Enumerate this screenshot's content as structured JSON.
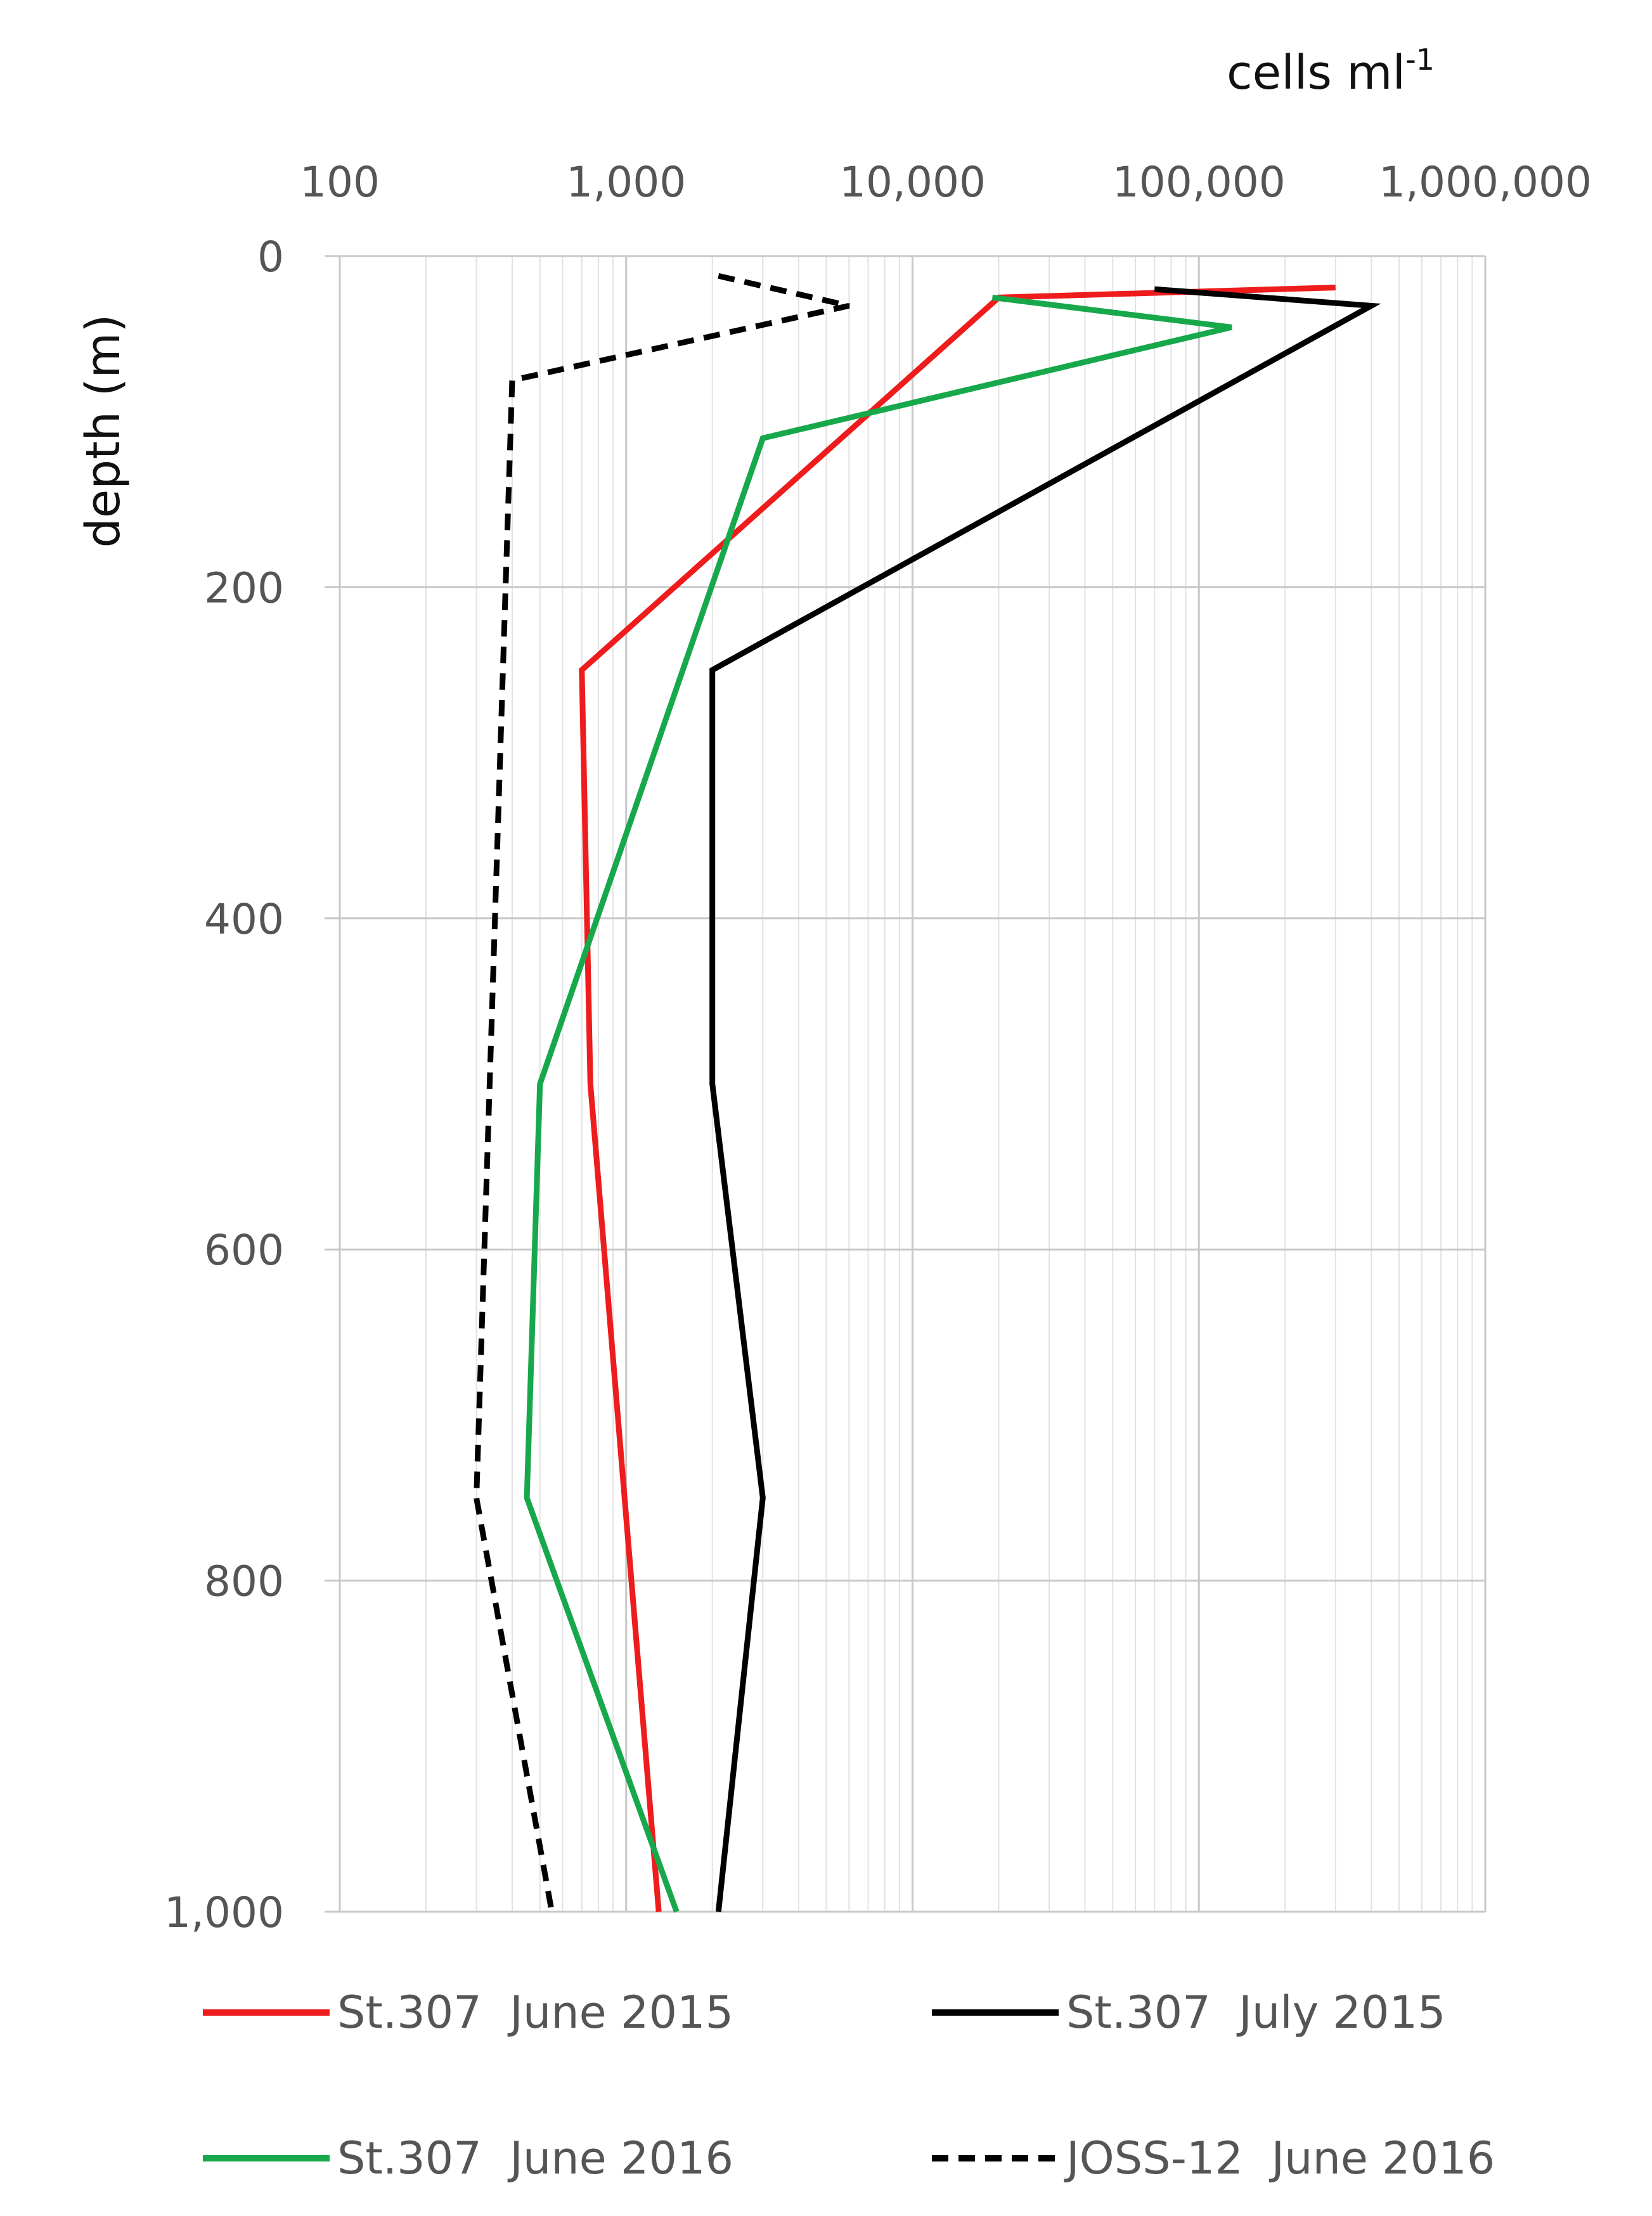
{
  "chart_data": {
    "type": "line",
    "title": "",
    "xlabel": "cells ml",
    "xlabel_superscript": "-1",
    "ylabel": "depth (m)",
    "x_scale": "log",
    "x_axis_position": "top",
    "y_inverted": true,
    "xlim": [
      100,
      1000000
    ],
    "ylim": [
      0,
      1000
    ],
    "x_ticks": [
      100,
      1000,
      10000,
      100000,
      1000000
    ],
    "x_tick_labels": [
      "100",
      "1,000",
      "10,000",
      "100,000",
      "1,000,000"
    ],
    "y_ticks": [
      0,
      200,
      400,
      600,
      800,
      1000
    ],
    "y_tick_labels": [
      "0",
      "200",
      "400",
      "600",
      "800",
      "1,000"
    ],
    "grid": true,
    "legend_position": "bottom",
    "series": [
      {
        "name": "St.307  June 2015",
        "color": "#ee1c1c",
        "dash": "solid",
        "points": [
          [
            300000,
            19
          ],
          [
            20000,
            25
          ],
          [
            700,
            250
          ],
          [
            750,
            500
          ],
          [
            1300,
            1000
          ]
        ]
      },
      {
        "name": "St.307  July 2015",
        "color": "#000000",
        "dash": "solid",
        "points": [
          [
            70000,
            20
          ],
          [
            400000,
            30
          ],
          [
            2000,
            250
          ],
          [
            2000,
            500
          ],
          [
            3000,
            750
          ],
          [
            2100,
            1000
          ]
        ]
      },
      {
        "name": "St.307  June 2016",
        "color": "#17a84b",
        "dash": "solid",
        "points": [
          [
            19000,
            25
          ],
          [
            130000,
            43
          ],
          [
            3000,
            110
          ],
          [
            500,
            500
          ],
          [
            450,
            750
          ],
          [
            1500,
            1000
          ]
        ]
      },
      {
        "name": "JOSS-12  June 2016",
        "color": "#000000",
        "dash": "dashed",
        "points": [
          [
            2100,
            12
          ],
          [
            6000,
            30
          ],
          [
            400,
            75
          ],
          [
            300,
            750
          ],
          [
            550,
            1000
          ]
        ]
      }
    ]
  }
}
